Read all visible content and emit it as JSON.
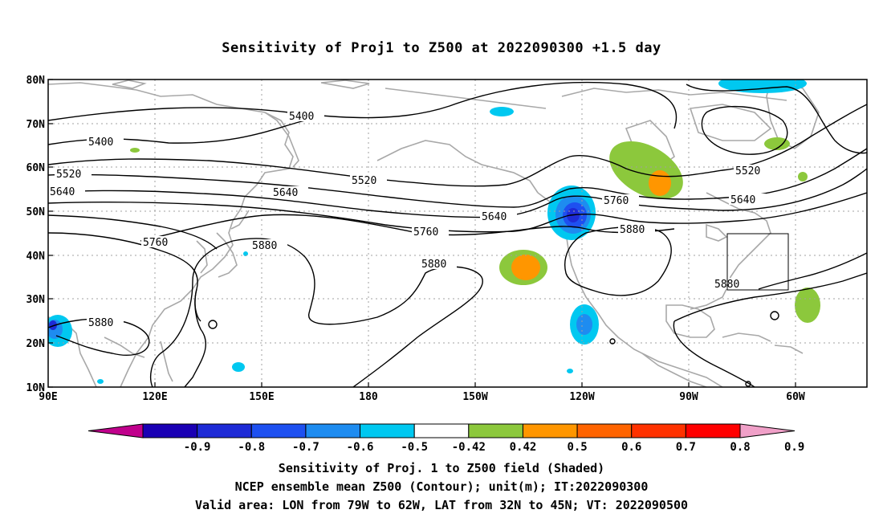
{
  "title": "Sensitivity of Proj1 to Z500 at 2022090300 +1.5 day",
  "map": {
    "lat_labels": [
      "80N",
      "70N",
      "60N",
      "50N",
      "40N",
      "30N",
      "20N",
      "10N"
    ],
    "lon_labels": [
      "90E",
      "120E",
      "150E",
      "180",
      "150W",
      "120W",
      "90W",
      "60W"
    ],
    "contour_labels": [
      "5400",
      "5400",
      "5520",
      "5520",
      "5520",
      "5640",
      "5640",
      "5640",
      "5640",
      "5760",
      "5760",
      "5760",
      "5880",
      "5880",
      "5880",
      "5880",
      "5880"
    ],
    "colors": {
      "contour": "#000000",
      "coastline": "#a8a8a8",
      "grid": "#a0a0a0"
    }
  },
  "colorbar": {
    "labels": [
      "-0.9",
      "-0.8",
      "-0.7",
      "-0.6",
      "-0.5",
      "-0.42",
      "0.42",
      "0.5",
      "0.6",
      "0.7",
      "0.8",
      "0.9"
    ],
    "colors": [
      "#c0008c",
      "#1a00b4",
      "#1e2bd6",
      "#1e50f0",
      "#1e8cf0",
      "#00c8f0",
      "#ffffff",
      "#8cc83c",
      "#ff9600",
      "#ff6400",
      "#ff3200",
      "#ff0000",
      "#f0a0c8"
    ]
  },
  "captions": {
    "line1": "Sensitivity of Proj. 1 to Z500 field (Shaded)",
    "line2": "NCEP ensemble mean Z500 (Contour); unit(m); IT:2022090300",
    "line3": "Valid area: LON from 79W to 62W, LAT from 32N to 45N; VT: 2022090500"
  }
}
